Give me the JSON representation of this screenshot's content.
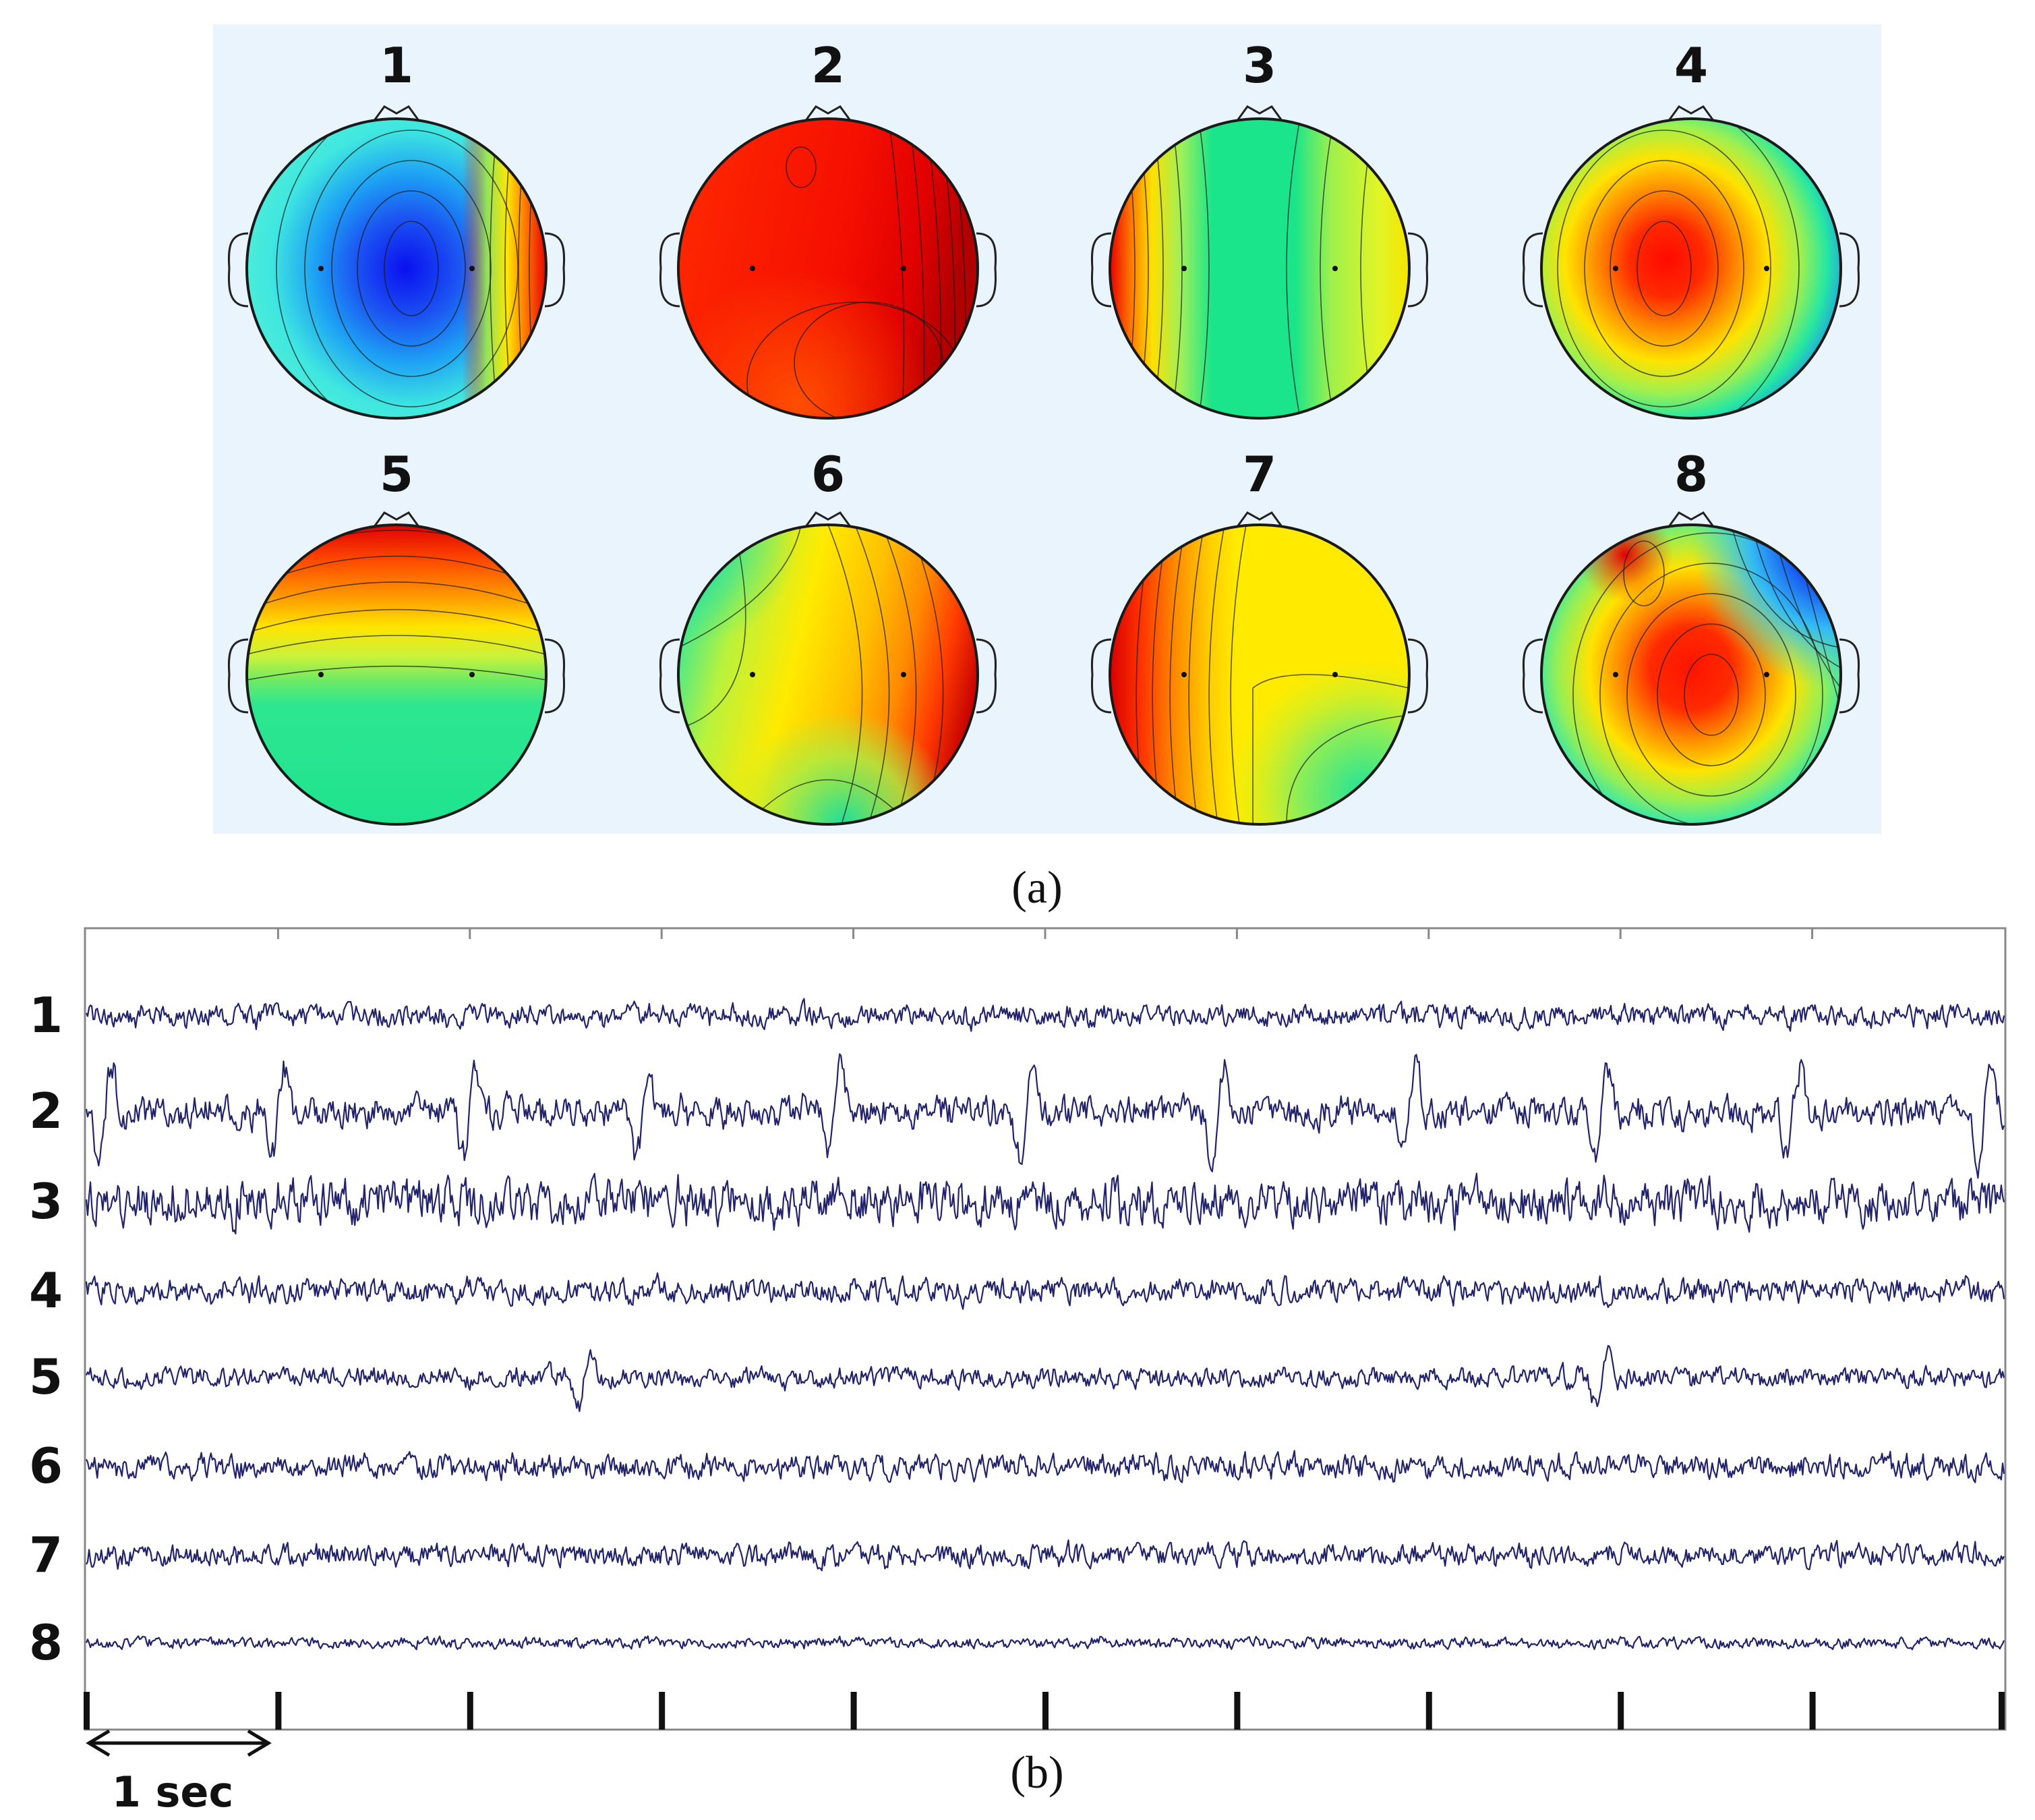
{
  "figure": {
    "panel_a": {
      "label": "(a)",
      "background_color": "#eaf4fd",
      "maps": [
        {
          "title": "1",
          "pattern": "blue-center"
        },
        {
          "title": "2",
          "pattern": "red-uniform"
        },
        {
          "title": "3",
          "pattern": "green-band"
        },
        {
          "title": "4",
          "pattern": "red-center"
        },
        {
          "title": "5",
          "pattern": "front-back-gradient"
        },
        {
          "title": "6",
          "pattern": "right-posterior"
        },
        {
          "title": "7",
          "pattern": "left-right"
        },
        {
          "title": "8",
          "pattern": "red-center-blue-corner"
        }
      ]
    },
    "panel_b": {
      "label": "(b)",
      "trace_color": "#23236b",
      "time_scale_label": "1 sec",
      "duration_seconds": 10,
      "channels": [
        {
          "label": "1",
          "amplitude": 0.5,
          "spikes": []
        },
        {
          "label": "2",
          "amplitude": 0.7,
          "spikes": [
            0.1,
            1.0,
            2.0,
            2.9,
            3.9,
            4.9,
            5.9,
            6.9,
            7.9,
            8.9,
            9.9
          ]
        },
        {
          "label": "3",
          "amplitude": 1.0,
          "spikes": []
        },
        {
          "label": "4",
          "amplitude": 0.55,
          "spikes": []
        },
        {
          "label": "5",
          "amplitude": 0.45,
          "spikes": [
            2.6,
            7.9
          ]
        },
        {
          "label": "6",
          "amplitude": 0.55,
          "spikes": []
        },
        {
          "label": "7",
          "amplitude": 0.5,
          "spikes": []
        },
        {
          "label": "8",
          "amplitude": 0.25,
          "spikes": []
        }
      ]
    }
  }
}
